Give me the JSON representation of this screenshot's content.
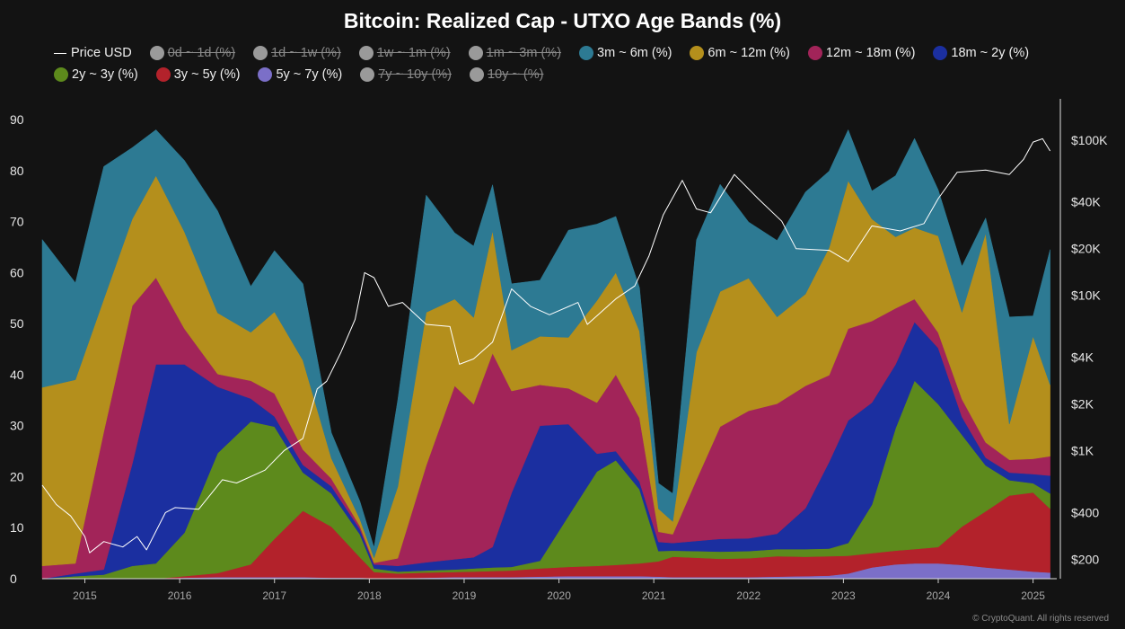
{
  "chart_data": {
    "type": "area",
    "title": "Bitcoin: Realized Cap - UTXO Age Bands (%)",
    "stacked": true,
    "x": [
      2014.55,
      2014.9,
      2015.2,
      2015.5,
      2015.75,
      2016.05,
      2016.4,
      2016.75,
      2017.0,
      2017.3,
      2017.6,
      2017.9,
      2018.05,
      2018.3,
      2018.6,
      2018.9,
      2019.1,
      2019.3,
      2019.5,
      2019.8,
      2020.1,
      2020.4,
      2020.6,
      2020.85,
      2021.05,
      2021.2,
      2021.45,
      2021.7,
      2022.0,
      2022.3,
      2022.6,
      2022.85,
      2023.05,
      2023.3,
      2023.55,
      2023.75,
      2024.0,
      2024.25,
      2024.5,
      2024.75,
      2025.0,
      2025.18
    ],
    "series": [
      {
        "name": "5y ~ 7y (%)",
        "color": "#7b6fc8",
        "values": [
          0,
          0,
          0,
          0,
          0,
          0.2,
          0.3,
          0.3,
          0.3,
          0.3,
          0.2,
          0.2,
          0.1,
          0.1,
          0.2,
          0.3,
          0.3,
          0.3,
          0.3,
          0.4,
          0.5,
          0.5,
          0.5,
          0.5,
          0.4,
          0.3,
          0.3,
          0.3,
          0.3,
          0.4,
          0.5,
          0.6,
          1.0,
          2.2,
          2.8,
          3.0,
          3.0,
          2.7,
          2.2,
          1.8,
          1.4,
          1.2
        ]
      },
      {
        "name": "3y ~ 5y (%)",
        "color": "#b3222b",
        "values": [
          0,
          0,
          0,
          0,
          0,
          0.3,
          0.8,
          2.5,
          7.5,
          13.0,
          10.0,
          4.0,
          1.2,
          0.9,
          1.0,
          1.0,
          1.1,
          1.2,
          1.3,
          1.6,
          1.8,
          2.0,
          2.2,
          2.5,
          3.0,
          4.0,
          3.8,
          3.6,
          3.7,
          4.0,
          3.8,
          3.8,
          3.5,
          2.8,
          2.7,
          2.8,
          3.2,
          7.5,
          11.0,
          14.5,
          15.5,
          12.5
        ]
      },
      {
        "name": "2y ~ 3y (%)",
        "color": "#5d8a1c",
        "values": [
          0,
          0.5,
          0.8,
          2.5,
          3.0,
          8.5,
          23.5,
          28.0,
          22.0,
          7.5,
          6.5,
          4.5,
          0.7,
          0.4,
          0.4,
          0.5,
          0.6,
          0.7,
          0.7,
          1.5,
          10.0,
          18.5,
          20.5,
          14.5,
          2.0,
          1.2,
          1.3,
          1.4,
          1.4,
          1.4,
          1.5,
          1.5,
          2.5,
          9.5,
          24.0,
          33.0,
          28.0,
          18.0,
          9.0,
          3.0,
          1.8,
          3.0
        ]
      },
      {
        "name": "18m ~ 2y (%)",
        "color": "#1b2fa0",
        "values": [
          0,
          0.5,
          1.0,
          20.0,
          39.0,
          33.0,
          13.0,
          4.5,
          2.0,
          1.5,
          1.4,
          1.0,
          0.8,
          1.1,
          1.6,
          2.0,
          2.2,
          4.0,
          14.5,
          26.5,
          18.0,
          3.5,
          1.8,
          1.5,
          1.8,
          1.5,
          2.0,
          2.5,
          2.5,
          3.0,
          8.0,
          17.0,
          24.0,
          20.0,
          12.5,
          11.5,
          11.0,
          3.5,
          1.5,
          1.5,
          1.8,
          3.5
        ]
      },
      {
        "name": "12m ~ 18m (%)",
        "color": "#a22459",
        "values": [
          2.5,
          2.0,
          27.0,
          31.0,
          17.0,
          7.0,
          2.5,
          3.5,
          4.5,
          3.0,
          1.5,
          0.6,
          0.3,
          1.5,
          19.0,
          34.0,
          30.0,
          38.0,
          20.0,
          8.0,
          7.0,
          10.0,
          15.0,
          12.5,
          2.0,
          1.7,
          12.0,
          22.0,
          25.0,
          25.5,
          24.0,
          17.0,
          18.0,
          16.0,
          11.0,
          4.5,
          3.0,
          3.5,
          3.0,
          2.5,
          3.0,
          3.8
        ]
      },
      {
        "name": "6m ~ 12m (%)",
        "color": "#b48f1c",
        "values": [
          35.0,
          36.0,
          26.0,
          17.0,
          20.0,
          19.0,
          12.0,
          9.5,
          16.0,
          17.5,
          4.0,
          1.4,
          1.0,
          14.0,
          30.0,
          17.0,
          17.0,
          24.0,
          8.0,
          9.5,
          10.0,
          20.0,
          20.0,
          17.0,
          4.5,
          2.5,
          25.0,
          26.5,
          26.0,
          17.0,
          18.0,
          25.0,
          29.0,
          20.0,
          14.0,
          14.0,
          19.0,
          17.0,
          41.0,
          7.0,
          24.0,
          14.0
        ]
      },
      {
        "name": "3m ~ 6m (%)",
        "color": "#2d7a93",
        "values": [
          29.0,
          19.0,
          26.0,
          14.0,
          9.0,
          14.0,
          20.0,
          9.0,
          12.0,
          15.0,
          5.0,
          3.5,
          2.0,
          17.0,
          23.0,
          13.0,
          14.0,
          9.0,
          13.0,
          11.0,
          21.0,
          15.0,
          11.0,
          8.5,
          5.0,
          5.5,
          22.0,
          21.0,
          11.0,
          15.0,
          20.0,
          15.0,
          10.0,
          5.5,
          12.0,
          17.5,
          9.0,
          9.0,
          3.0,
          21.0,
          4.0,
          26.5
        ]
      }
    ],
    "hidden_series": [
      "0d ~ 1d (%)",
      "1d ~ 1w (%)",
      "1w ~ 1m (%)",
      "1m ~ 3m (%)",
      "7y ~ 10y (%)",
      "10y ~ (%)"
    ],
    "price": {
      "name": "Price USD",
      "color": "#ffffff",
      "x": [
        2014.55,
        2014.7,
        2014.85,
        2015.0,
        2015.05,
        2015.2,
        2015.4,
        2015.55,
        2015.65,
        2015.85,
        2015.95,
        2016.2,
        2016.45,
        2016.6,
        2016.9,
        2017.1,
        2017.3,
        2017.45,
        2017.55,
        2017.7,
        2017.85,
        2017.95,
        2018.05,
        2018.2,
        2018.35,
        2018.6,
        2018.85,
        2018.95,
        2019.1,
        2019.3,
        2019.5,
        2019.7,
        2019.9,
        2020.2,
        2020.3,
        2020.6,
        2020.8,
        2020.95,
        2021.1,
        2021.3,
        2021.45,
        2021.6,
        2021.85,
        2022.1,
        2022.35,
        2022.5,
        2022.85,
        2023.05,
        2023.3,
        2023.6,
        2023.85,
        2024.0,
        2024.2,
        2024.5,
        2024.75,
        2024.9,
        2025.0,
        2025.1,
        2025.18
      ],
      "values": [
        600,
        450,
        380,
        280,
        220,
        260,
        240,
        280,
        230,
        400,
        430,
        420,
        650,
        620,
        750,
        1000,
        1200,
        2500,
        2800,
        4300,
        7000,
        14000,
        13000,
        8500,
        9000,
        6500,
        6300,
        3600,
        3900,
        5000,
        11000,
        8500,
        7500,
        9000,
        6500,
        9500,
        11500,
        18000,
        33000,
        55000,
        36000,
        34000,
        60000,
        42000,
        30000,
        20000,
        19500,
        16500,
        28000,
        26000,
        29000,
        42000,
        62000,
        64000,
        60000,
        75000,
        97000,
        102000,
        85000
      ]
    },
    "ylim": [
      0,
      93
    ],
    "y_ticks": [
      0,
      10,
      20,
      30,
      40,
      50,
      60,
      70,
      80,
      90
    ],
    "y2_scale": "log",
    "y2_ticks": [
      {
        "value": 200,
        "label": "$200"
      },
      {
        "value": 400,
        "label": "$400"
      },
      {
        "value": 1000,
        "label": "$1K"
      },
      {
        "value": 2000,
        "label": "$2K"
      },
      {
        "value": 4000,
        "label": "$4K"
      },
      {
        "value": 10000,
        "label": "$10K"
      },
      {
        "value": 20000,
        "label": "$20K"
      },
      {
        "value": 40000,
        "label": "$40K"
      },
      {
        "value": 100000,
        "label": "$100K"
      }
    ],
    "x_ticks": [
      "2015",
      "2016",
      "2017",
      "2018",
      "2019",
      "2020",
      "2021",
      "2022",
      "2023",
      "2024",
      "2025"
    ],
    "legend_position": "top",
    "grid": false
  },
  "legend": [
    {
      "label": "Price USD",
      "color": "#ffffff",
      "kind": "line",
      "active": true
    },
    {
      "label": "0d ~ 1d (%)",
      "color": "#9a9a9a",
      "kind": "dot",
      "active": false
    },
    {
      "label": "1d ~ 1w (%)",
      "color": "#9a9a9a",
      "kind": "dot",
      "active": false
    },
    {
      "label": "1w ~ 1m (%)",
      "color": "#9a9a9a",
      "kind": "dot",
      "active": false
    },
    {
      "label": "1m ~ 3m (%)",
      "color": "#9a9a9a",
      "kind": "dot",
      "active": false
    },
    {
      "label": "3m ~ 6m (%)",
      "color": "#2d7a93",
      "kind": "dot",
      "active": true
    },
    {
      "label": "6m ~ 12m (%)",
      "color": "#b48f1c",
      "kind": "dot",
      "active": true
    },
    {
      "label": "12m ~ 18m (%)",
      "color": "#a22459",
      "kind": "dot",
      "active": true
    },
    {
      "label": "18m ~ 2y (%)",
      "color": "#1b2fa0",
      "kind": "dot",
      "active": true
    },
    {
      "label": "2y ~ 3y (%)",
      "color": "#5d8a1c",
      "kind": "dot",
      "active": true
    },
    {
      "label": "3y ~ 5y (%)",
      "color": "#b3222b",
      "kind": "dot",
      "active": true
    },
    {
      "label": "5y ~ 7y (%)",
      "color": "#7b6fc8",
      "kind": "dot",
      "active": true
    },
    {
      "label": "7y ~ 10y (%)",
      "color": "#9a9a9a",
      "kind": "dot",
      "active": false
    },
    {
      "label": "10y ~ (%)",
      "color": "#9a9a9a",
      "kind": "dot",
      "active": false
    }
  ],
  "watermark": "© CryptoQuant. All rights reserved"
}
